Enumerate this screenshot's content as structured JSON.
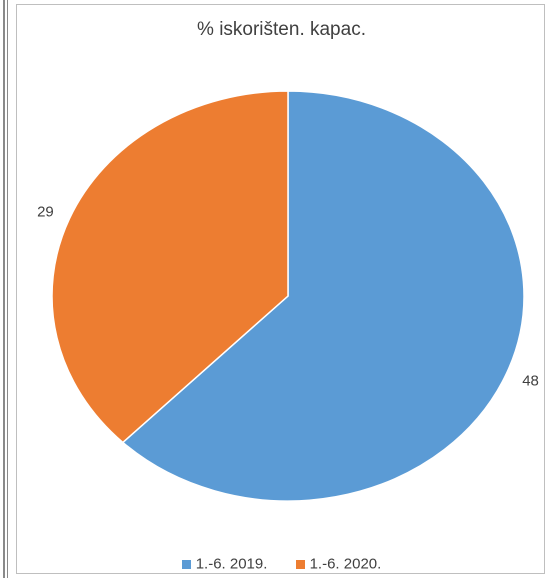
{
  "chart_data": {
    "type": "pie",
    "title": "% iskorišten. kapac.",
    "categories": [
      "1.-6. 2019.",
      "1.-6. 2020."
    ],
    "values": [
      48,
      29
    ],
    "colors": [
      "#5b9bd5",
      "#ed7d31"
    ],
    "legend_position": "bottom"
  }
}
